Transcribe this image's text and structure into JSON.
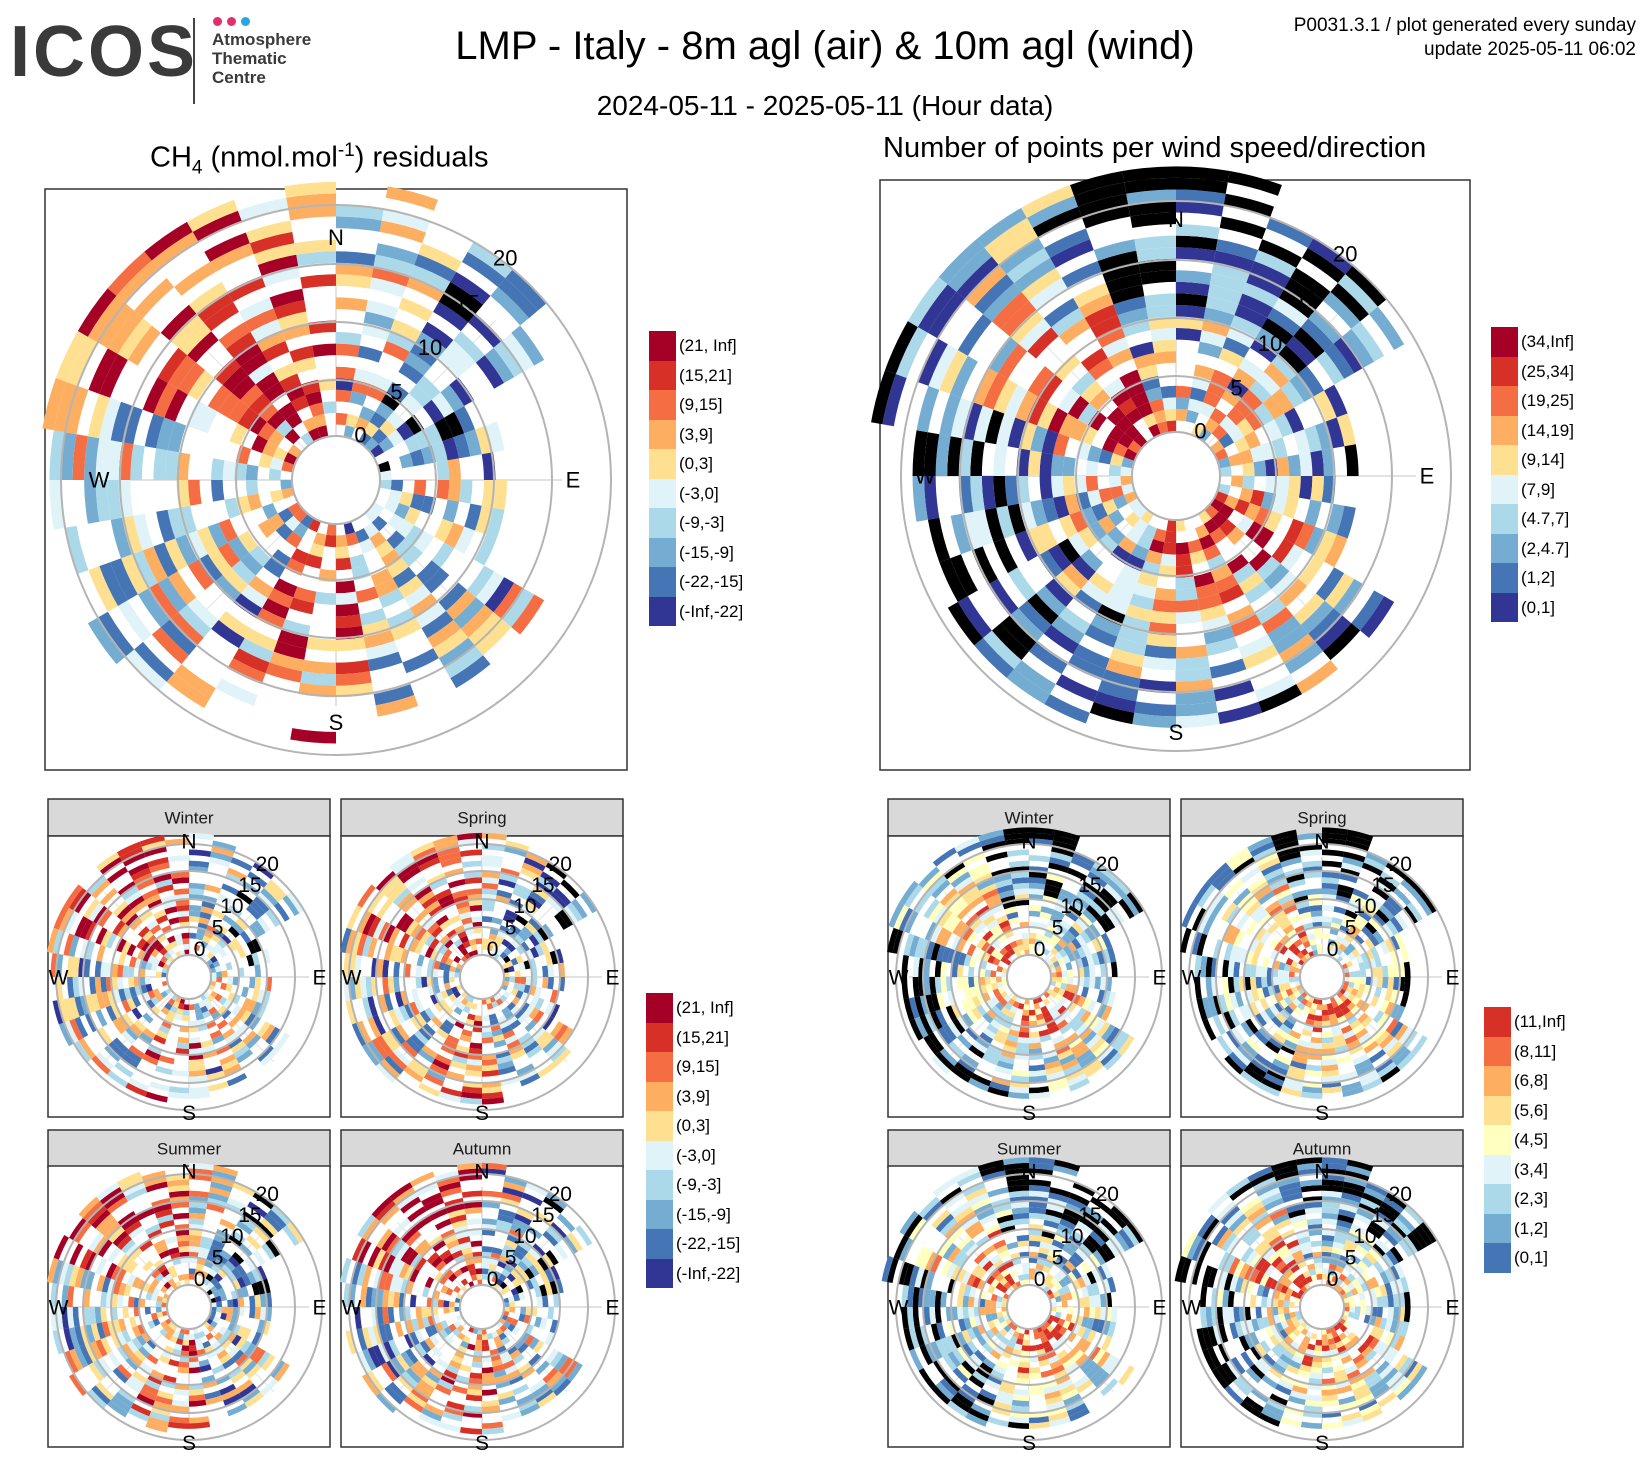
{
  "header": {
    "logo": "ICOS",
    "logo_sub": [
      "Atmosphere",
      "Thematic",
      "Centre"
    ],
    "logo_dot_colors": [
      "#e1306c",
      "#e1306c",
      "#2aa6df"
    ],
    "title": "LMP - Italy - 8m agl (air) & 10m agl (wind)",
    "subtitle": "2024-05-11 - 2025-05-11 (Hour data)",
    "meta_line1": "P0031.3.1 / plot generated every sunday",
    "meta_line2": "update  2025-05-11 06:02"
  },
  "sections": {
    "left_title_prefix": "CH",
    "left_title_sub": "4",
    "left_title_mid": " (nmol.mol",
    "left_title_sup": "-1",
    "left_title_suffix": ") residuals",
    "right_title": "Number of points per wind speed/direction"
  },
  "compass": [
    "N",
    "E",
    "S",
    "W"
  ],
  "speed_labels": [
    "0",
    "5",
    "10",
    "15",
    "20"
  ],
  "seasons": [
    "Winter",
    "Spring",
    "Summer",
    "Autumn"
  ],
  "legends": {
    "residuals": {
      "labels": [
        "(21, Inf]",
        "(15,21]",
        "(9,15]",
        "(3,9]",
        "(0,3]",
        "(-3,0]",
        "(-9,-3]",
        "(-15,-9]",
        "(-22,-15]",
        "(-Inf,-22]"
      ],
      "colors": [
        "#a50026",
        "#d73027",
        "#f46d43",
        "#fdae61",
        "#fee090",
        "#e0f3f8",
        "#abd9e9",
        "#74add1",
        "#4575b4",
        "#313695"
      ]
    },
    "counts": {
      "labels": [
        "(34,Inf]",
        "(25,34]",
        "(19,25]",
        "(14,19]",
        "(9,14]",
        "(7,9]",
        "(4.7,7]",
        "(2,4.7]",
        "(1,2]",
        "(0,1]"
      ],
      "colors": [
        "#a50026",
        "#d73027",
        "#f46d43",
        "#fdae61",
        "#fee090",
        "#e0f3f8",
        "#abd9e9",
        "#74add1",
        "#4575b4",
        "#313695"
      ]
    },
    "counts_seasonal": {
      "labels": [
        "(11,Inf]",
        "(8,11]",
        "(6,8]",
        "(5,6]",
        "(4,5]",
        "(3,4]",
        "(2,3]",
        "(1,2]",
        "(0,1]"
      ],
      "colors": [
        "#d73027",
        "#f46d43",
        "#fdae61",
        "#fee090",
        "#ffffbf",
        "#e0f3f8",
        "#abd9e9",
        "#74add1",
        "#4575b4"
      ]
    }
  },
  "chart_data": [
    {
      "type": "heatmap",
      "title": "CH4 (nmol.mol-1) residuals",
      "theta": "wind direction",
      "r": "wind speed",
      "r_ticks": [
        0,
        5,
        10,
        15,
        20
      ],
      "legend": "residuals"
    },
    {
      "type": "heatmap",
      "title": "Number of points per wind speed/direction",
      "theta": "wind direction",
      "r": "wind speed",
      "r_ticks": [
        0,
        5,
        10,
        15,
        20
      ],
      "legend": "counts"
    },
    {
      "type": "heatmap",
      "title": "Winter",
      "legend": "residuals"
    },
    {
      "type": "heatmap",
      "title": "Spring",
      "legend": "residuals"
    },
    {
      "type": "heatmap",
      "title": "Summer",
      "legend": "residuals"
    },
    {
      "type": "heatmap",
      "title": "Autumn",
      "legend": "residuals"
    },
    {
      "type": "heatmap",
      "title": "Winter",
      "legend": "counts_seasonal"
    },
    {
      "type": "heatmap",
      "title": "Spring",
      "legend": "counts_seasonal"
    },
    {
      "type": "heatmap",
      "title": "Summer",
      "legend": "counts_seasonal"
    },
    {
      "type": "heatmap",
      "title": "Autumn",
      "legend": "counts_seasonal"
    }
  ]
}
